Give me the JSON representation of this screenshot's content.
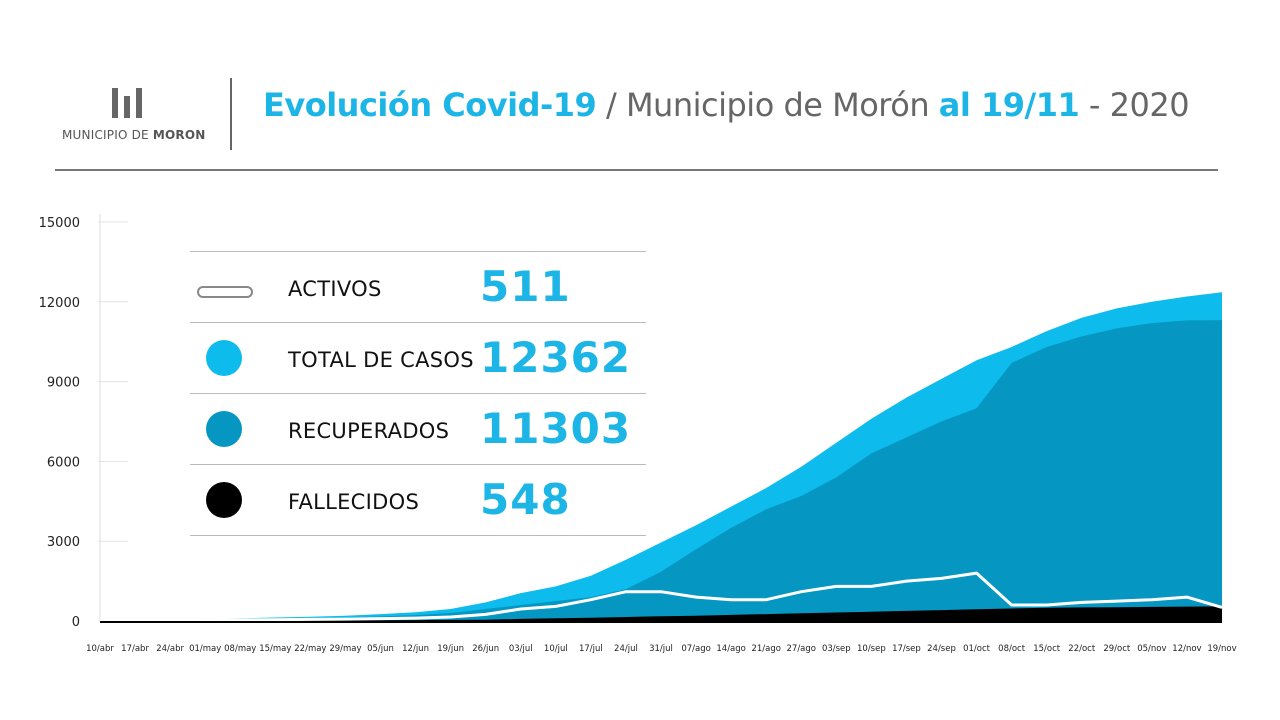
{
  "header": {
    "logo_text_prefix": "MUNICIPIO DE ",
    "logo_text_bold": "MORON",
    "title_part1": "Evolución Covid-19",
    "title_part2": " / Municipio de Morón ",
    "title_part3": "al 19/11",
    "title_part4": " - 2020"
  },
  "legend": [
    {
      "label": "ACTIVOS",
      "value": "511",
      "swatch": "pill",
      "color": "#ffffff"
    },
    {
      "label": "TOTAL DE CASOS",
      "value": "12362",
      "swatch": "circle",
      "color": "#0dbbec"
    },
    {
      "label": "RECUPERADOS",
      "value": "11303",
      "swatch": "circle",
      "color": "#0596c2"
    },
    {
      "label": "FALLECIDOS",
      "value": "548",
      "swatch": "circle",
      "color": "#000000"
    }
  ],
  "colors": {
    "accent": "#1cb5e6",
    "total": "#0dbbec",
    "recuperados": "#0596c2",
    "fallecidos": "#000000",
    "activos_line": "#ffffff"
  },
  "chart_data": {
    "type": "area",
    "ylim": [
      0,
      15000
    ],
    "yticks": [
      0,
      3000,
      6000,
      9000,
      12000,
      15000
    ],
    "categories": [
      "10/abr",
      "17/abr",
      "24/abr",
      "01/may",
      "08/may",
      "15/may",
      "22/may",
      "29/may",
      "05/jun",
      "12/jun",
      "19/jun",
      "26/jun",
      "03/jul",
      "10/jul",
      "17/jul",
      "24/jul",
      "31/jul",
      "07/ago",
      "14/ago",
      "21/ago",
      "27/ago",
      "03/sep",
      "10/sep",
      "17/sep",
      "24/sep",
      "01/oct",
      "08/oct",
      "15/oct",
      "22/oct",
      "29/oct",
      "05/nov",
      "12/nov",
      "19/nov"
    ],
    "series": [
      {
        "name": "TOTAL DE CASOS",
        "values": [
          20,
          40,
          60,
          80,
          100,
          130,
          160,
          200,
          260,
          330,
          450,
          700,
          1050,
          1300,
          1700,
          2300,
          2950,
          3600,
          4300,
          5000,
          5800,
          6700,
          7600,
          8400,
          9100,
          9800,
          10300,
          10900,
          11400,
          11750,
          12000,
          12200,
          12362
        ]
      },
      {
        "name": "RECUPERADOS",
        "values": [
          5,
          15,
          30,
          45,
          60,
          80,
          100,
          130,
          170,
          220,
          300,
          450,
          600,
          750,
          900,
          1200,
          1850,
          2700,
          3500,
          4200,
          4700,
          5400,
          6300,
          6900,
          7500,
          8000,
          9700,
          10300,
          10700,
          11000,
          11200,
          11300,
          11303
        ]
      },
      {
        "name": "ACTIVOS",
        "values": [
          15,
          25,
          30,
          35,
          40,
          50,
          60,
          70,
          90,
          110,
          150,
          250,
          450,
          550,
          800,
          1100,
          1100,
          900,
          800,
          800,
          1100,
          1300,
          1300,
          1500,
          1600,
          1800,
          600,
          600,
          700,
          750,
          800,
          900,
          511
        ]
      },
      {
        "name": "FALLECIDOS",
        "values": [
          0,
          5,
          8,
          10,
          15,
          18,
          22,
          25,
          30,
          35,
          40,
          50,
          80,
          100,
          120,
          150,
          180,
          200,
          230,
          260,
          290,
          320,
          350,
          380,
          410,
          440,
          470,
          500,
          510,
          520,
          530,
          540,
          548
        ]
      }
    ]
  }
}
